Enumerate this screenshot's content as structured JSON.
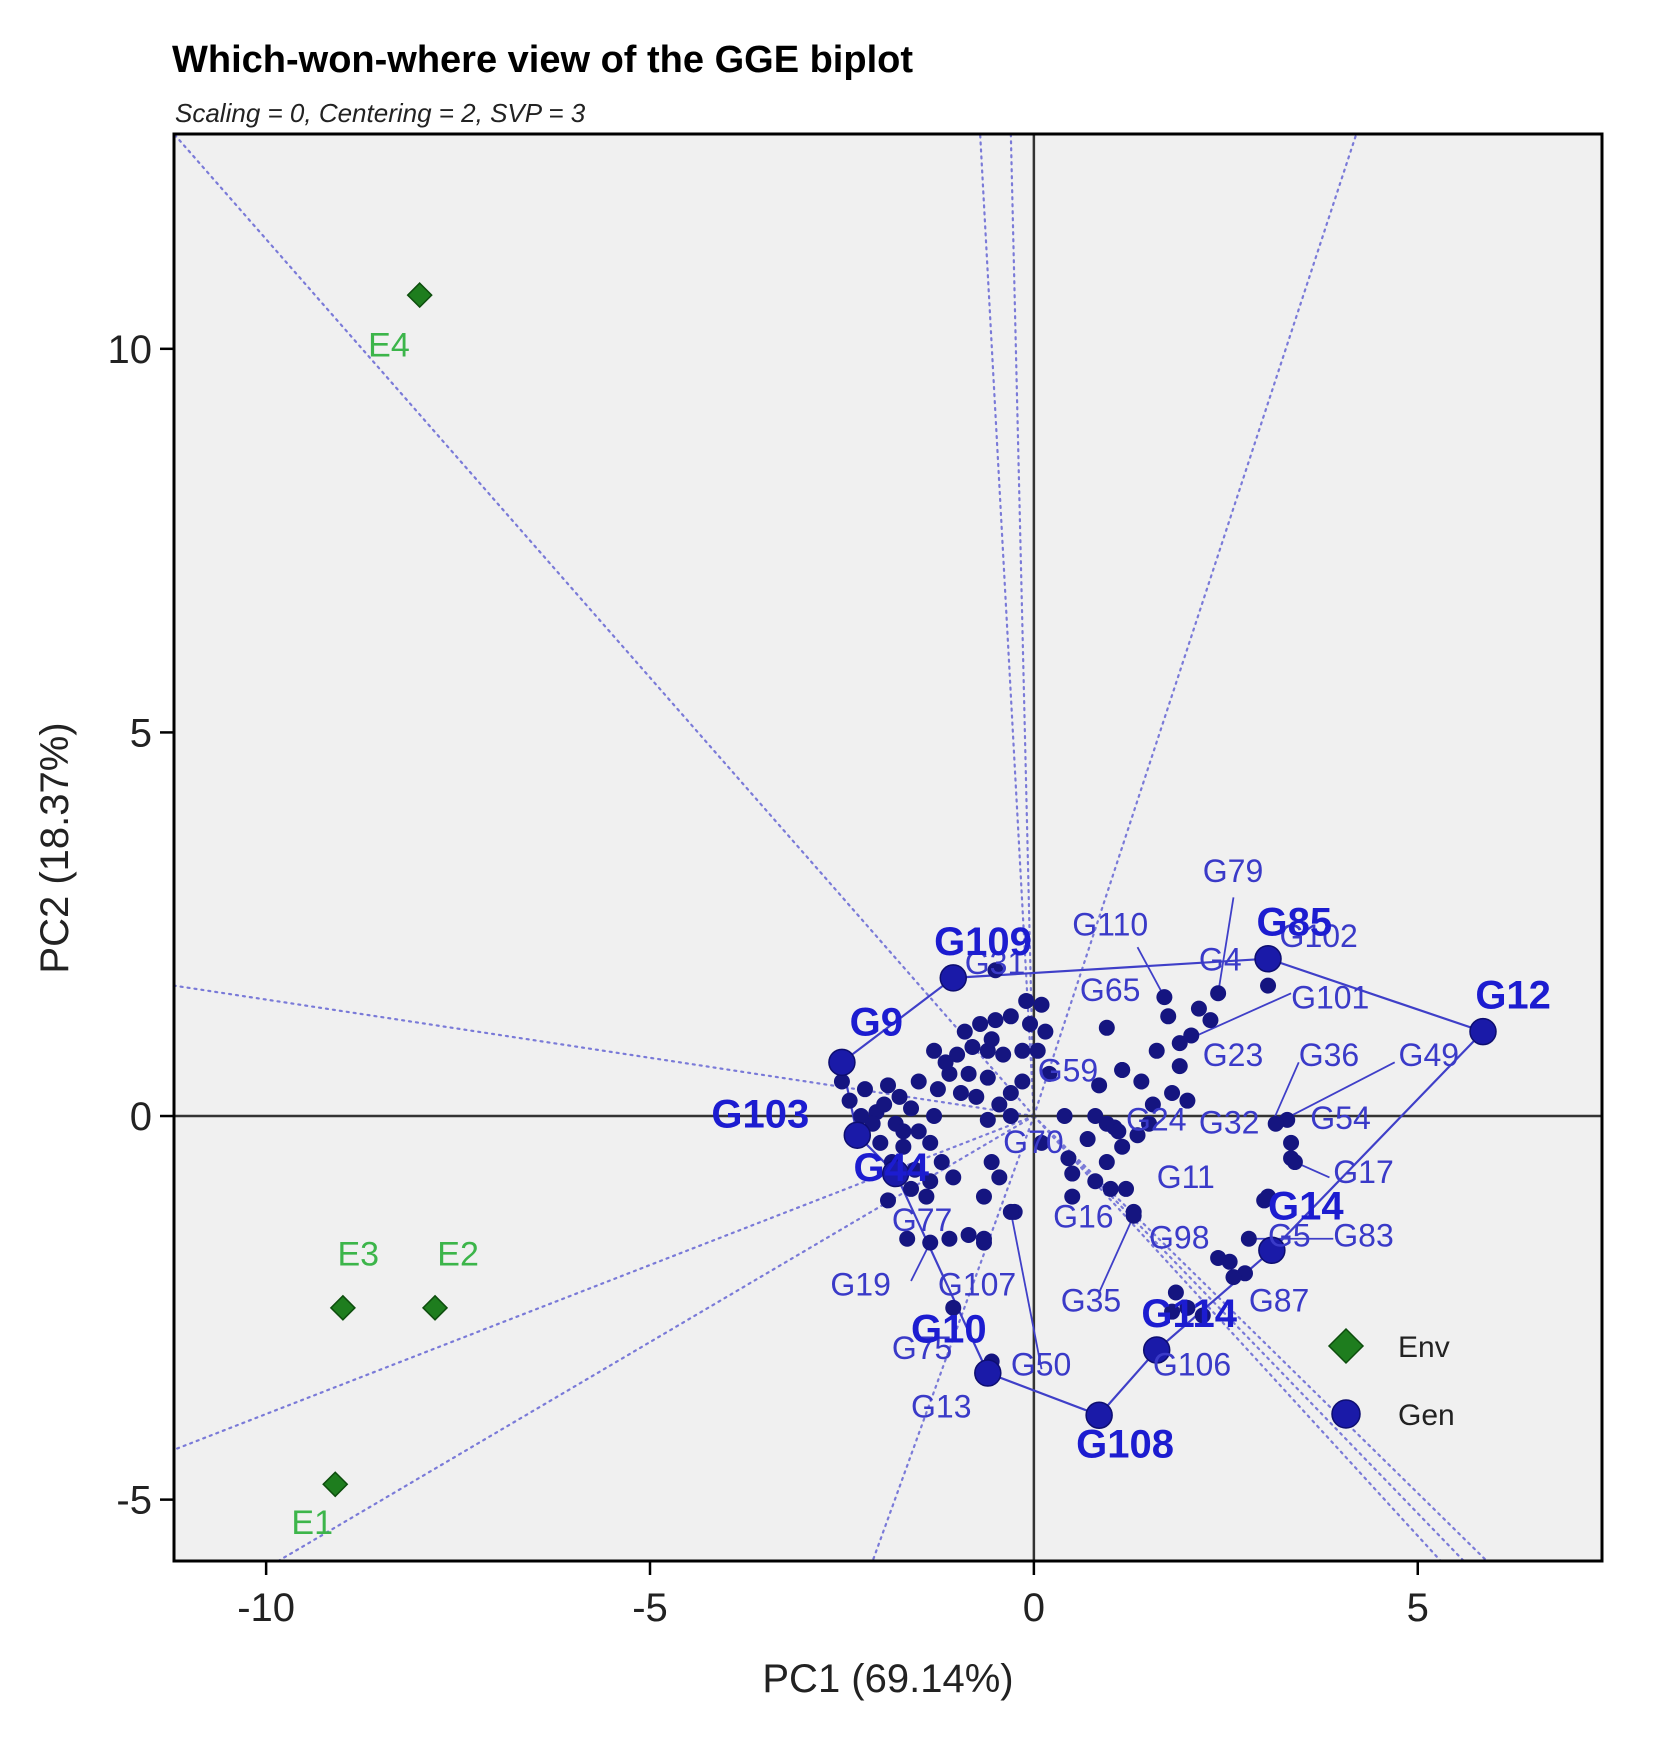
{
  "chart_data": {
    "type": "scatter",
    "title": "Which-won-where view of the GGE biplot",
    "subtitle": "Scaling = 0, Centering = 2, SVP = 3",
    "xlabel": "PC1 (69.14%)",
    "ylabel": "PC2 (18.37%)",
    "xlim": [
      -11.2,
      7.4
    ],
    "ylim": [
      -5.8,
      12.8
    ],
    "xticks": [
      -10,
      -5,
      0,
      5
    ],
    "yticks": [
      -5,
      0,
      5,
      10
    ],
    "grid": false,
    "legend_position": "bottom-right",
    "legend": [
      {
        "name": "Env",
        "symbol": "diamond",
        "color": "#1e7d1e"
      },
      {
        "name": "Gen",
        "symbol": "circle",
        "color": "#1a1aa8"
      }
    ],
    "colors": {
      "env_marker": "#1e7d1e",
      "env_label": "#3cb54a",
      "gen_marker": "#151580",
      "gen_label": "#3a3ac8",
      "vertex_label": "#1c1cd0",
      "hull": "#3f3fc8",
      "ray": "#7a7ad8",
      "panel": "#f0f0f0"
    },
    "environments": [
      {
        "name": "E1",
        "x": -9.1,
        "y": -4.8
      },
      {
        "name": "E2",
        "x": -7.8,
        "y": -2.5
      },
      {
        "name": "E3",
        "x": -9.0,
        "y": -2.5
      },
      {
        "name": "E4",
        "x": -8.0,
        "y": 10.7
      }
    ],
    "vertex_genotypes": [
      {
        "name": "G109",
        "x": -1.05,
        "y": 1.8
      },
      {
        "name": "G85",
        "x": 3.05,
        "y": 2.05
      },
      {
        "name": "G12",
        "x": 5.85,
        "y": 1.1
      },
      {
        "name": "G14",
        "x": 3.1,
        "y": -1.75
      },
      {
        "name": "G114",
        "x": 1.6,
        "y": -3.05
      },
      {
        "name": "G108",
        "x": 0.85,
        "y": -3.9
      },
      {
        "name": "G10",
        "x": -0.6,
        "y": -3.35
      },
      {
        "name": "G44",
        "x": -1.8,
        "y": -0.75
      },
      {
        "name": "G103",
        "x": -2.3,
        "y": -0.25
      },
      {
        "name": "G9",
        "x": -2.5,
        "y": 0.7
      }
    ],
    "hull_order": [
      "G109",
      "G85",
      "G12",
      "G14",
      "G114",
      "G108",
      "G10",
      "G44",
      "G103",
      "G9"
    ],
    "labeled_genotypes": [
      {
        "name": "G79",
        "x": 2.4,
        "y": 1.6
      },
      {
        "name": "G110",
        "x": 1.7,
        "y": 1.55
      },
      {
        "name": "G4",
        "x": 2.15,
        "y": 1.4
      },
      {
        "name": "G102",
        "x": 3.05,
        "y": 1.7
      },
      {
        "name": "G65",
        "x": 0.95,
        "y": 1.15
      },
      {
        "name": "G101",
        "x": 1.9,
        "y": 0.95
      },
      {
        "name": "G23",
        "x": 1.15,
        "y": 0.6
      },
      {
        "name": "G36",
        "x": 3.3,
        "y": -0.05
      },
      {
        "name": "G49",
        "x": 3.15,
        "y": -0.1
      },
      {
        "name": "G54",
        "x": 3.35,
        "y": -0.35
      },
      {
        "name": "G17",
        "x": 3.4,
        "y": -0.6
      },
      {
        "name": "G83",
        "x": 3.0,
        "y": -1.1
      },
      {
        "name": "G32",
        "x": 1.35,
        "y": -0.25
      },
      {
        "name": "G24",
        "x": 1.1,
        "y": -0.2
      },
      {
        "name": "G11",
        "x": 1.2,
        "y": -0.95
      },
      {
        "name": "G98",
        "x": 2.4,
        "y": -1.85
      },
      {
        "name": "G87",
        "x": 2.6,
        "y": -2.1
      },
      {
        "name": "G106",
        "x": 1.8,
        "y": -2.55
      },
      {
        "name": "G35",
        "x": 1.3,
        "y": -1.3
      },
      {
        "name": "G16",
        "x": 0.5,
        "y": -0.75
      },
      {
        "name": "G59",
        "x": 0.2,
        "y": 0.55
      },
      {
        "name": "G70",
        "x": -0.6,
        "y": -0.05
      },
      {
        "name": "G77",
        "x": -1.4,
        "y": -1.05
      },
      {
        "name": "G19",
        "x": -1.35,
        "y": -1.65
      },
      {
        "name": "G107",
        "x": -0.65,
        "y": -1.65
      },
      {
        "name": "G75",
        "x": -1.05,
        "y": -2.5
      },
      {
        "name": "G50",
        "x": -0.3,
        "y": -1.25
      },
      {
        "name": "G13",
        "x": -0.55,
        "y": -3.2
      },
      {
        "name": "G5",
        "x": 2.8,
        "y": -1.6
      },
      {
        "name": "G31",
        "x": -0.5,
        "y": 1.9
      }
    ],
    "text_labels": [
      {
        "text": "G79",
        "x": 2.2,
        "y": 3.05,
        "vertex": false
      },
      {
        "text": "G110",
        "x": 0.5,
        "y": 2.35,
        "vertex": false
      },
      {
        "text": "G4",
        "x": 2.15,
        "y": 1.9,
        "vertex": false
      },
      {
        "text": "G102",
        "x": 3.2,
        "y": 2.2,
        "vertex": false
      },
      {
        "text": "G65",
        "x": 0.6,
        "y": 1.5,
        "vertex": false
      },
      {
        "text": "G101",
        "x": 3.35,
        "y": 1.4,
        "vertex": false
      },
      {
        "text": "G23",
        "x": 2.2,
        "y": 0.65,
        "vertex": false
      },
      {
        "text": "G36",
        "x": 3.45,
        "y": 0.65,
        "vertex": false
      },
      {
        "text": "G49",
        "x": 4.75,
        "y": 0.65,
        "vertex": false
      },
      {
        "text": "G54",
        "x": 3.6,
        "y": -0.17,
        "vertex": false
      },
      {
        "text": "G17",
        "x": 3.9,
        "y": -0.87,
        "vertex": false
      },
      {
        "text": "G83",
        "x": 3.9,
        "y": -1.7,
        "vertex": false
      },
      {
        "text": "G32",
        "x": 2.15,
        "y": -0.23,
        "vertex": false
      },
      {
        "text": "G24",
        "x": 1.2,
        "y": -0.19,
        "vertex": false
      },
      {
        "text": "G11",
        "x": 1.6,
        "y": -0.94,
        "vertex": false
      },
      {
        "text": "G98",
        "x": 1.5,
        "y": -1.73,
        "vertex": false
      },
      {
        "text": "G87",
        "x": 2.8,
        "y": -2.55,
        "vertex": false
      },
      {
        "text": "G106",
        "x": 1.55,
        "y": -3.38,
        "vertex": false
      },
      {
        "text": "G35",
        "x": 0.35,
        "y": -2.55,
        "vertex": false
      },
      {
        "text": "G16",
        "x": 0.25,
        "y": -1.45,
        "vertex": false
      },
      {
        "text": "G59",
        "x": 0.05,
        "y": 0.45,
        "vertex": false
      },
      {
        "text": "G70",
        "x": -0.4,
        "y": -0.48,
        "vertex": false
      },
      {
        "text": "G77",
        "x": -1.85,
        "y": -1.5,
        "vertex": false
      },
      {
        "text": "G19",
        "x": -2.65,
        "y": -2.34,
        "vertex": false
      },
      {
        "text": "G107",
        "x": -1.25,
        "y": -2.34,
        "vertex": false
      },
      {
        "text": "G75",
        "x": -1.85,
        "y": -3.17,
        "vertex": false
      },
      {
        "text": "G50",
        "x": -0.3,
        "y": -3.38,
        "vertex": false
      },
      {
        "text": "G13",
        "x": -1.6,
        "y": -3.93,
        "vertex": false
      },
      {
        "text": "G5",
        "x": 3.05,
        "y": -1.7,
        "vertex": false
      },
      {
        "text": "G31",
        "x": -0.9,
        "y": 1.85,
        "vertex": false
      },
      {
        "text": "G85",
        "x": 2.9,
        "y": 2.35,
        "vertex": true
      },
      {
        "text": "G12",
        "x": 5.75,
        "y": 1.4,
        "vertex": true
      },
      {
        "text": "G109",
        "x": -1.3,
        "y": 2.1,
        "vertex": true
      },
      {
        "text": "G9",
        "x": -2.4,
        "y": 1.05,
        "vertex": true
      },
      {
        "text": "G103",
        "x": -4.2,
        "y": -0.15,
        "vertex": true
      },
      {
        "text": "G44",
        "x": -2.35,
        "y": -0.85,
        "vertex": true
      },
      {
        "text": "G14",
        "x": 3.05,
        "y": -1.35,
        "vertex": true
      },
      {
        "text": "G114",
        "x": 1.4,
        "y": -2.75,
        "vertex": true
      },
      {
        "text": "G10",
        "x": -1.6,
        "y": -2.95,
        "vertex": true
      },
      {
        "text": "G108",
        "x": 0.55,
        "y": -4.45,
        "vertex": true
      }
    ],
    "leader_lines": [
      {
        "from": [
          2.4,
          1.6
        ],
        "to": [
          2.6,
          2.85
        ]
      },
      {
        "from": [
          1.7,
          1.55
        ],
        "to": [
          1.35,
          2.2
        ]
      },
      {
        "from": [
          1.9,
          0.95
        ],
        "to": [
          3.35,
          1.6
        ]
      },
      {
        "from": [
          3.1,
          -0.1
        ],
        "to": [
          3.45,
          0.7
        ]
      },
      {
        "from": [
          3.15,
          -0.1
        ],
        "to": [
          4.7,
          0.7
        ]
      },
      {
        "from": [
          3.4,
          -0.6
        ],
        "to": [
          3.85,
          -0.8
        ]
      },
      {
        "from": [
          2.8,
          -1.6
        ],
        "to": [
          3.9,
          -1.6
        ]
      },
      {
        "from": [
          1.3,
          -1.3
        ],
        "to": [
          0.85,
          -2.3
        ]
      },
      {
        "from": [
          -1.35,
          -1.65
        ],
        "to": [
          -1.6,
          -2.15
        ]
      },
      {
        "from": [
          -0.3,
          -1.25
        ],
        "to": [
          0.1,
          -3.3
        ]
      },
      {
        "from": [
          -0.55,
          -3.2
        ],
        "to": [
          -0.65,
          -3.3
        ]
      }
    ],
    "rays": [
      {
        "to": [
          -11.2,
          12.8
        ]
      },
      {
        "to": [
          -11.2,
          1.7
        ]
      },
      {
        "to": [
          -11.2,
          -4.35
        ]
      },
      {
        "to": [
          -11.2,
          -6.6
        ]
      },
      {
        "to": [
          -2.1,
          -5.8
        ]
      },
      {
        "to": [
          5.9,
          -5.8
        ]
      },
      {
        "to": [
          5.3,
          -5.8
        ]
      },
      {
        "to": [
          5.6,
          -5.8
        ]
      },
      {
        "to": [
          4.2,
          12.8
        ]
      },
      {
        "to": [
          -0.7,
          12.8
        ]
      },
      {
        "to": [
          -0.3,
          12.8
        ]
      }
    ],
    "unlabeled_genotypes": [
      [
        -2.5,
        0.45
      ],
      [
        -2.4,
        0.2
      ],
      [
        -2.2,
        0.35
      ],
      [
        -2.05,
        0.05
      ],
      [
        -1.9,
        0.4
      ],
      [
        -1.75,
        0.25
      ],
      [
        -1.6,
        0.1
      ],
      [
        -1.5,
        0.45
      ],
      [
        -1.8,
        -0.1
      ],
      [
        -2.0,
        -0.35
      ],
      [
        -1.7,
        -0.4
      ],
      [
        -1.5,
        -0.2
      ],
      [
        -1.3,
        0.0
      ],
      [
        -1.25,
        0.35
      ],
      [
        -1.1,
        0.55
      ],
      [
        -0.95,
        0.3
      ],
      [
        -0.85,
        0.55
      ],
      [
        -0.75,
        0.25
      ],
      [
        -0.6,
        0.5
      ],
      [
        -0.45,
        0.15
      ],
      [
        -0.3,
        0.0
      ],
      [
        -1.35,
        -0.35
      ],
      [
        -1.2,
        -0.6
      ],
      [
        -1.05,
        -0.8
      ],
      [
        -1.55,
        -0.7
      ],
      [
        -1.85,
        -0.6
      ],
      [
        -1.9,
        -1.1
      ],
      [
        -1.6,
        -0.95
      ],
      [
        -1.65,
        -1.6
      ],
      [
        -1.1,
        -1.6
      ],
      [
        -0.65,
        -1.6
      ],
      [
        -0.85,
        -1.55
      ],
      [
        -0.45,
        -0.8
      ],
      [
        -0.25,
        -1.25
      ],
      [
        -0.65,
        -1.05
      ],
      [
        -0.55,
        -0.6
      ],
      [
        -0.3,
        0.3
      ],
      [
        -0.15,
        0.45
      ],
      [
        0.05,
        0.85
      ],
      [
        -0.15,
        0.85
      ],
      [
        -0.4,
        0.8
      ],
      [
        -0.6,
        0.85
      ],
      [
        -0.8,
        0.9
      ],
      [
        -1.0,
        0.8
      ],
      [
        -1.15,
        0.7
      ],
      [
        -1.3,
        0.85
      ],
      [
        -0.9,
        1.1
      ],
      [
        -0.7,
        1.2
      ],
      [
        -0.5,
        1.25
      ],
      [
        -0.3,
        1.3
      ],
      [
        -0.05,
        1.2
      ],
      [
        0.15,
        1.1
      ],
      [
        0.1,
        1.45
      ],
      [
        -0.1,
        1.5
      ],
      [
        -0.55,
        1.0
      ],
      [
        -1.35,
        -0.85
      ],
      [
        -1.7,
        -0.2
      ],
      [
        -2.1,
        -0.1
      ],
      [
        -2.25,
        0.0
      ],
      [
        -1.95,
        0.15
      ],
      [
        0.1,
        -0.35
      ],
      [
        0.4,
        0.0
      ],
      [
        0.8,
        0.0
      ],
      [
        0.95,
        -0.1
      ],
      [
        1.15,
        -0.4
      ],
      [
        0.7,
        -0.3
      ],
      [
        0.45,
        -0.55
      ],
      [
        0.5,
        -1.05
      ],
      [
        1.0,
        -0.95
      ],
      [
        1.3,
        -1.25
      ],
      [
        0.85,
        0.4
      ],
      [
        1.15,
        0.6
      ],
      [
        1.4,
        0.45
      ],
      [
        1.55,
        0.15
      ],
      [
        1.8,
        0.3
      ],
      [
        1.6,
        0.85
      ],
      [
        1.9,
        0.65
      ],
      [
        2.05,
        1.05
      ],
      [
        1.75,
        1.3
      ],
      [
        2.3,
        1.25
      ],
      [
        0.95,
        -0.6
      ],
      [
        0.8,
        -0.85
      ],
      [
        1.05,
        -0.15
      ],
      [
        2.0,
        0.2
      ],
      [
        1.5,
        -0.1
      ],
      [
        3.35,
        -0.55
      ],
      [
        3.05,
        -1.05
      ],
      [
        2.55,
        -1.9
      ],
      [
        2.75,
        -2.05
      ],
      [
        2.0,
        -2.5
      ],
      [
        1.85,
        -2.3
      ],
      [
        2.2,
        -2.6
      ]
    ]
  }
}
